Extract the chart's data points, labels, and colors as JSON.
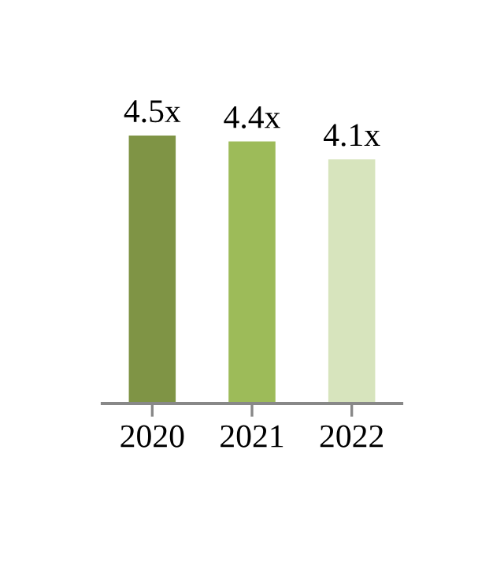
{
  "chart_data": {
    "type": "bar",
    "categories": [
      "2020",
      "2021",
      "2022"
    ],
    "values": [
      4.5,
      4.4,
      4.1
    ],
    "colors": [
      "#7f9445",
      "#9dbb59",
      "#d7e4bd"
    ],
    "value_labels": [
      "4.5x",
      "4.4x",
      "4.1x"
    ],
    "grid": false,
    "legend": false
  }
}
